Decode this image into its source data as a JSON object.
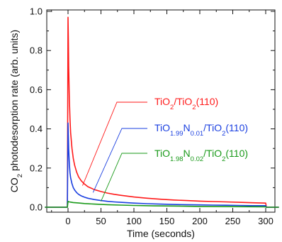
{
  "chart_data": {
    "type": "line",
    "title": "",
    "xlabel": "Time (seconds)",
    "ylabel_parts": [
      {
        "text": "CO",
        "sub": false
      },
      {
        "text": "2",
        "sub": true
      },
      {
        "text": " photodesorption rate (arb. units)",
        "sub": false
      }
    ],
    "xlim": [
      -35,
      320
    ],
    "ylim": [
      -0.02,
      1.0
    ],
    "x_ticks": [
      0,
      50,
      100,
      150,
      200,
      250,
      300
    ],
    "x_tick_labels": [
      "0",
      "50",
      "100",
      "150",
      "200",
      "250",
      "300"
    ],
    "y_ticks": [
      0.0,
      0.2,
      0.4,
      0.6,
      0.8,
      1.0
    ],
    "y_tick_labels": [
      "0.0",
      "0.2",
      "0.4",
      "0.6",
      "0.8",
      "1.0"
    ],
    "grid": false,
    "series": [
      {
        "color": "#ff1a1a",
        "label_parts": [
          {
            "text": "TiO",
            "sub": false
          },
          {
            "text": "2",
            "sub": true
          },
          {
            "text": "/TiO",
            "sub": false
          },
          {
            "text": "2",
            "sub": true
          },
          {
            "text": "(110)",
            "sub": false
          }
        ],
        "x": [
          -35,
          -30,
          -25,
          -20,
          -15,
          -10,
          -5,
          -1,
          0,
          0.5,
          1,
          2,
          3,
          4,
          6,
          8,
          10,
          13,
          16,
          20,
          25,
          30,
          40,
          50,
          60,
          70,
          80,
          100,
          120,
          140,
          160,
          180,
          200,
          220,
          240,
          260,
          280,
          300,
          301,
          310,
          320
        ],
        "y": [
          0.0,
          0.0,
          0.0,
          0.0,
          0.0,
          0.0,
          0.0,
          0.0,
          0.97,
          0.85,
          0.72,
          0.55,
          0.45,
          0.38,
          0.3,
          0.25,
          0.215,
          0.18,
          0.155,
          0.135,
          0.118,
          0.105,
          0.09,
          0.08,
          0.072,
          0.066,
          0.061,
          0.052,
          0.046,
          0.041,
          0.037,
          0.034,
          0.031,
          0.029,
          0.027,
          0.025,
          0.023,
          0.021,
          0.0,
          0.0,
          0.0
        ]
      },
      {
        "color": "#1a3fe0",
        "label_parts": [
          {
            "text": "TiO",
            "sub": false
          },
          {
            "text": "1.99",
            "sub": true
          },
          {
            "text": "N",
            "sub": false
          },
          {
            "text": "0.01",
            "sub": true
          },
          {
            "text": "/TiO",
            "sub": false
          },
          {
            "text": "2",
            "sub": true
          },
          {
            "text": "(110)",
            "sub": false
          }
        ],
        "x": [
          -35,
          -30,
          -25,
          -20,
          -15,
          -10,
          -5,
          -1,
          0,
          0.5,
          1,
          2,
          3,
          4,
          6,
          8,
          10,
          13,
          16,
          20,
          25,
          30,
          40,
          50,
          60,
          70,
          80,
          100,
          120,
          140,
          160,
          180,
          200,
          220,
          240,
          260,
          280,
          300,
          301,
          310,
          320
        ],
        "y": [
          0.0,
          0.0,
          0.0,
          0.0,
          0.0,
          0.0,
          0.0,
          0.0,
          0.43,
          0.36,
          0.3,
          0.22,
          0.175,
          0.15,
          0.12,
          0.1,
          0.088,
          0.075,
          0.066,
          0.058,
          0.051,
          0.046,
          0.039,
          0.034,
          0.03,
          0.027,
          0.025,
          0.021,
          0.018,
          0.016,
          0.014,
          0.013,
          0.012,
          0.011,
          0.01,
          0.009,
          0.008,
          0.008,
          0.0,
          0.0,
          0.0
        ]
      },
      {
        "color": "#1a9a1a",
        "label_parts": [
          {
            "text": "TiO",
            "sub": false
          },
          {
            "text": "1.98",
            "sub": true
          },
          {
            "text": "N",
            "sub": false
          },
          {
            "text": "0.02",
            "sub": true
          },
          {
            "text": "/TiO",
            "sub": false
          },
          {
            "text": "2",
            "sub": true
          },
          {
            "text": "(110)",
            "sub": false
          }
        ],
        "x": [
          -35,
          -30,
          -25,
          -20,
          -15,
          -10,
          -5,
          -1,
          0,
          1,
          2,
          4,
          8,
          15,
          25,
          40,
          60,
          80,
          100,
          130,
          160,
          200,
          250,
          300,
          301,
          310,
          320
        ],
        "y": [
          0.0,
          0.0,
          0.0,
          0.0,
          0.0,
          0.0,
          0.0,
          0.0,
          0.03,
          0.028,
          0.027,
          0.026,
          0.024,
          0.022,
          0.019,
          0.016,
          0.013,
          0.011,
          0.009,
          0.007,
          0.006,
          0.004,
          0.003,
          0.002,
          0.0,
          0.0,
          0.0
        ]
      }
    ]
  }
}
